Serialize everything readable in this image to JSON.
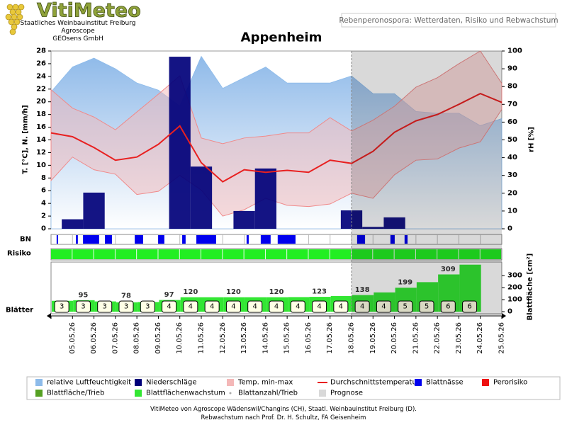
{
  "header": {
    "logo": "VitiMeteo",
    "institute": "Staatliches Weinbauinstitut Freiburg",
    "org1": "Agroscope",
    "org2": "GEOsens GmbH",
    "subtitle": "Rebenperonospora: Wetterdaten, Risiko und Rebwachstum"
  },
  "chart_data": {
    "type": "combo",
    "title": "Appenheim",
    "categories": [
      null,
      "05.05.26",
      "06.05.26",
      "07.05.26",
      "08.05.26",
      "09.05.26",
      "10.05.26",
      "11.05.26",
      "12.05.26",
      "13.05.26",
      "14.05.26",
      "15.05.26",
      "16.05.26",
      "17.05.26",
      "18.05.26",
      "19.05.26",
      "20.05.26",
      "21.05.26",
      "22.05.26",
      "23.05.26",
      "24.05.26",
      "25.05.26"
    ],
    "ylabel": "T. [°C], N. [mm/h]",
    "ylim": [
      0,
      28
    ],
    "yticks": [
      0,
      2,
      4,
      6,
      8,
      10,
      12,
      14,
      16,
      18,
      20,
      22,
      24,
      26,
      28
    ],
    "y2label": "rH [%]",
    "y2lim": [
      0,
      100
    ],
    "y2ticks": [
      0,
      10,
      20,
      30,
      40,
      50,
      60,
      70,
      80,
      90,
      100
    ],
    "series": [
      {
        "name": "relative Luftfeuchtigkeit",
        "type": "area",
        "axis": "y2",
        "color": "#8dbbea",
        "values": [
          77,
          91,
          96,
          90,
          82,
          78,
          69,
          97,
          79,
          85,
          91,
          82,
          82,
          82,
          86,
          76,
          76,
          66,
          65,
          65,
          58,
          62
        ]
      },
      {
        "name": "Niederschläge",
        "type": "bar",
        "color": "#00007a",
        "values": [
          0,
          1.5,
          5.7,
          0,
          0,
          0,
          27.1,
          9.8,
          0,
          2.8,
          9.5,
          0,
          0,
          0,
          2.9,
          0.3,
          1.8,
          0,
          0,
          0,
          0,
          0
        ]
      },
      {
        "name": "Temp. min-max",
        "type": "band",
        "color": "#f4b8b8",
        "high": [
          21.9,
          19,
          17.6,
          15.6,
          18.4,
          21.2,
          24.1,
          14.3,
          13.4,
          14.3,
          14.6,
          15.1,
          15.1,
          17.5,
          15.4,
          17.1,
          19.3,
          22.3,
          23.8,
          26,
          28,
          22.9
        ],
        "low": [
          7.6,
          11.3,
          9.3,
          8.6,
          5.4,
          5.9,
          8.4,
          6.1,
          2,
          3,
          4.8,
          3.7,
          3.5,
          3.9,
          5.6,
          4.8,
          8.5,
          10.8,
          11,
          12.7,
          13.7,
          18.8
        ]
      },
      {
        "name": "Durchschnittstemperatur",
        "type": "line",
        "color": "#e82020",
        "values": [
          15.1,
          14.5,
          12.8,
          10.8,
          11.3,
          13.3,
          16.2,
          10.4,
          7.4,
          9.3,
          8.9,
          9.2,
          8.9,
          10.8,
          10.3,
          12.2,
          15.2,
          17,
          18,
          19.6,
          21.3,
          19.9
        ]
      }
    ],
    "bn": {
      "name": "Blattnässe",
      "row_label": "BN",
      "color": "#0000ee",
      "periods": [
        [
          0.26,
          0.33
        ],
        [
          1.16,
          1.25
        ],
        [
          1.49,
          2.24
        ],
        [
          2.51,
          2.84
        ],
        [
          3.9,
          4.29
        ],
        [
          4.99,
          5.28
        ],
        [
          6.11,
          6.27
        ],
        [
          6.77,
          7.69
        ],
        [
          9.11,
          9.21
        ],
        [
          9.77,
          10.23
        ],
        [
          10.56,
          11.39
        ],
        [
          14.26,
          14.63
        ],
        [
          15.81,
          16.01
        ],
        [
          16.47,
          16.61
        ]
      ]
    },
    "risk": {
      "name": "Perorisiko",
      "row_label": "Risiko",
      "color": "#ee1111",
      "level_colors": [
        "#22ee22",
        "#ffee00",
        "#ee1111"
      ],
      "values": [
        0,
        0,
        0,
        0,
        0,
        0,
        0,
        0,
        0,
        0,
        0,
        0,
        0,
        0,
        0,
        0,
        0,
        0,
        0,
        0,
        0
      ]
    },
    "leaf_area": {
      "name": "Blattfläche/Trieb",
      "color": "#55a022"
    },
    "growth": {
      "name": "Blattflächenwachstum",
      "color": "#33e633",
      "ylabel": "Blattfläche [cm²]",
      "ylim": [
        0,
        400
      ],
      "yticks": [
        0,
        100,
        200,
        300
      ],
      "values": [
        90,
        95,
        85,
        78,
        80,
        97,
        120,
        120,
        120,
        120,
        120,
        121,
        123,
        130,
        138,
        160,
        199,
        245,
        309,
        390
      ],
      "value_labels": [
        null,
        "95",
        null,
        "78",
        null,
        "97",
        "120",
        null,
        "120",
        null,
        "120",
        null,
        "123",
        null,
        "138",
        null,
        "199",
        null,
        "309",
        null
      ]
    },
    "leaves": {
      "name": "Blattanzahl/Trieb",
      "row_label": "Blätter",
      "color": "#aaaaaa",
      "values": [
        3,
        3,
        3,
        3,
        3,
        4,
        4,
        4,
        4,
        4,
        4,
        4,
        4,
        4,
        4,
        4,
        5,
        5,
        6,
        6
      ]
    },
    "prognose": {
      "name": "Prognose",
      "color": "#d9d9d9",
      "from": 14
    }
  },
  "footer": {
    "line1": "VitiMeteo von Agroscope Wädenswil/Changins (CH), Staatl. Weinbauinstitut Freiburg (D).",
    "line2": "Rebwachstum nach Prof. Dr. H. Schultz, FA Geisenheim"
  }
}
